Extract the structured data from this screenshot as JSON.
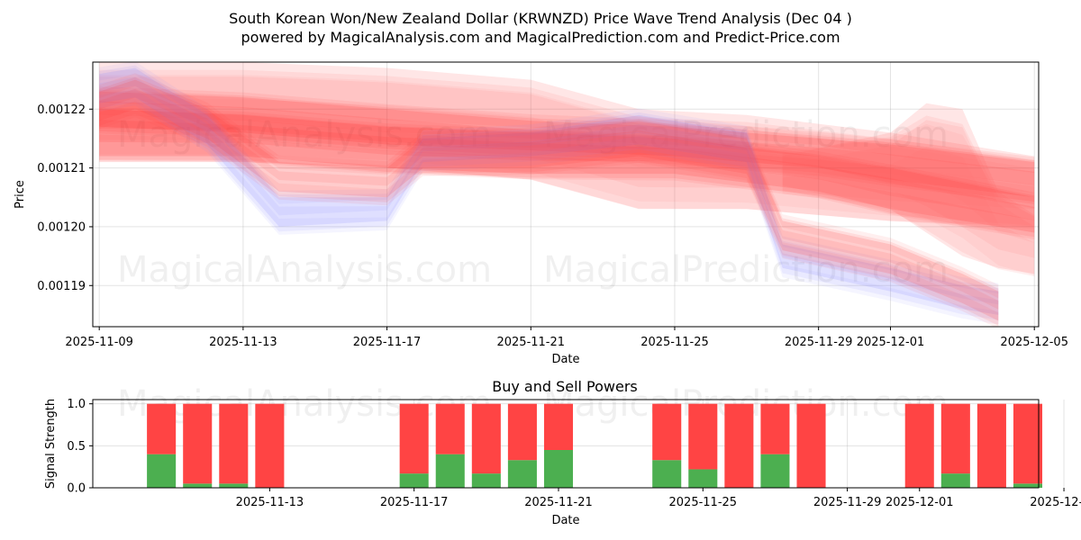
{
  "chart_data": [
    {
      "type": "area",
      "title_line1": "South Korean Won/New Zealand Dollar (KRWNZD) Price Wave Trend Analysis (Dec 04 )",
      "title_line2": "powered by MagicalAnalysis.com and MagicalPrediction.com and Predict-Price.com",
      "xlabel": "Date",
      "ylabel": "Price",
      "x_ticks": [
        "2025-11-09",
        "2025-11-13",
        "2025-11-17",
        "2025-11-21",
        "2025-11-25",
        "2025-11-29",
        "2025-12-01",
        "2025-12-05"
      ],
      "y_ticks": [
        "0.00119",
        "0.00120",
        "0.00121",
        "0.00122"
      ],
      "ylim": [
        0.001183,
        0.001228
      ],
      "grid": true,
      "watermarks": [
        "MagicalAnalysis.com",
        "MagicalPrediction.com"
      ],
      "series": [
        {
          "name": "wave-upper-main",
          "color": "#ff0000",
          "x": [
            "2025-11-09",
            "2025-11-13",
            "2025-11-17",
            "2025-11-21",
            "2025-11-25",
            "2025-11-29",
            "2025-12-01",
            "2025-12-05"
          ],
          "low": [
            0.001217,
            0.001216,
            0.001214,
            0.001213,
            0.001212,
            0.00121,
            0.001208,
            0.001205
          ],
          "high": [
            0.001223,
            0.001222,
            0.00122,
            0.001218,
            0.001217,
            0.001215,
            0.001214,
            0.001211
          ]
        },
        {
          "name": "wave-mid-band",
          "color": "#ff0000",
          "x": [
            "2025-11-09",
            "2025-11-13",
            "2025-11-17",
            "2025-11-21",
            "2025-11-25",
            "2025-11-29",
            "2025-12-01",
            "2025-12-05"
          ],
          "low": [
            0.001212,
            0.001212,
            0.00121,
            0.001209,
            0.001209,
            0.001206,
            0.001203,
            0.001199
          ],
          "high": [
            0.00122,
            0.001219,
            0.001217,
            0.001216,
            0.001215,
            0.001212,
            0.00121,
            0.001205
          ]
        },
        {
          "name": "wave-broad-band",
          "color": "#ff6666",
          "x": [
            "2025-11-09",
            "2025-11-13",
            "2025-11-17",
            "2025-11-21",
            "2025-11-24",
            "2025-11-27",
            "2025-12-01",
            "2025-12-05"
          ],
          "low": [
            0.001211,
            0.001211,
            0.00121,
            0.001208,
            0.001203,
            0.001203,
            0.001201,
            0.0012
          ],
          "high": [
            0.001228,
            0.001228,
            0.001227,
            0.001225,
            0.00122,
            0.001219,
            0.001216,
            0.001212
          ]
        },
        {
          "name": "wave-forecast-spike",
          "color": "#ff6666",
          "x": [
            "2025-11-28",
            "2025-12-01",
            "2025-12-02",
            "2025-12-03",
            "2025-12-04",
            "2025-12-05"
          ],
          "low": [
            0.001207,
            0.001203,
            0.001199,
            0.001195,
            0.001193,
            0.001192
          ],
          "high": [
            0.001212,
            0.001216,
            0.001221,
            0.00122,
            0.001206,
            0.001202
          ]
        },
        {
          "name": "wave-blue-path",
          "color": "#8888ff",
          "x": [
            "2025-11-09",
            "2025-11-10",
            "2025-11-12",
            "2025-11-14",
            "2025-11-17",
            "2025-11-18",
            "2025-11-21",
            "2025-11-24",
            "2025-11-27",
            "2025-11-28",
            "2025-12-01",
            "2025-12-03",
            "2025-12-04"
          ],
          "low": [
            0.001221,
            0.001222,
            0.001214,
            0.0012,
            0.001201,
            0.001211,
            0.001212,
            0.001214,
            0.001211,
            0.001193,
            0.001189,
            0.001186,
            0.001185
          ],
          "high": [
            0.001226,
            0.001227,
            0.001219,
            0.001205,
            0.001205,
            0.001215,
            0.001216,
            0.001219,
            0.001216,
            0.001197,
            0.001193,
            0.00119,
            0.001189
          ]
        },
        {
          "name": "wave-red-path",
          "color": "#ff4444",
          "x": [
            "2025-11-09",
            "2025-11-10",
            "2025-11-12",
            "2025-11-14",
            "2025-11-17",
            "2025-11-18",
            "2025-11-21",
            "2025-11-24",
            "2025-11-27",
            "2025-11-28",
            "2025-12-01",
            "2025-12-03",
            "2025-12-04"
          ],
          "low": [
            0.001218,
            0.00122,
            0.001215,
            0.001206,
            0.001205,
            0.00121,
            0.00121,
            0.001212,
            0.001209,
            0.001196,
            0.001192,
            0.001187,
            0.001184
          ],
          "high": [
            0.001223,
            0.001225,
            0.00122,
            0.001211,
            0.00121,
            0.001215,
            0.001216,
            0.001218,
            0.001215,
            0.001201,
            0.001197,
            0.001192,
            0.001189
          ]
        }
      ]
    },
    {
      "type": "bar",
      "title": "Buy and Sell Powers",
      "xlabel": "Date",
      "ylabel": "Signal Strength",
      "y_ticks": [
        "0.0",
        "0.5",
        "1.0"
      ],
      "ylim": [
        0,
        1.05
      ],
      "x_ticks": [
        "2025-11-13",
        "2025-11-17",
        "2025-11-21",
        "2025-11-25",
        "2025-11-29",
        "2025-12-01",
        "2025-12-05"
      ],
      "dates": [
        "2025-11-10",
        "2025-11-11",
        "2025-11-12",
        "2025-11-13",
        "2025-11-17",
        "2025-11-18",
        "2025-11-19",
        "2025-11-20",
        "2025-11-21",
        "2025-11-24",
        "2025-11-25",
        "2025-11-26",
        "2025-11-27",
        "2025-11-28",
        "2025-12-01",
        "2025-12-02",
        "2025-12-03",
        "2025-12-04"
      ],
      "series": [
        {
          "name": "Buy",
          "color": "#4caf50",
          "values": [
            0.4,
            0.05,
            0.05,
            0,
            0.17,
            0.4,
            0.17,
            0.33,
            0.45,
            0.33,
            0.22,
            0,
            0.4,
            0,
            0,
            0.17,
            0,
            0.05
          ]
        },
        {
          "name": "Sell",
          "color": "#ff4444",
          "values": [
            0.6,
            0.95,
            0.95,
            1,
            0.83,
            0.6,
            0.83,
            0.67,
            0.55,
            0.67,
            0.78,
            1,
            0.6,
            1,
            1,
            0.83,
            1,
            0.95
          ]
        }
      ]
    }
  ]
}
